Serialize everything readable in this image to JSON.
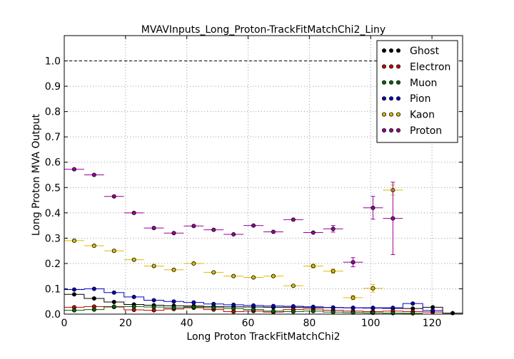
{
  "chart_data": {
    "type": "scatter",
    "title": "MVAVInputs_Long_Proton-TrackFitMatchChi2_Liny",
    "xlabel": "Long Proton TrackFitMatchChi2",
    "ylabel": "Long Proton MVA Output",
    "xlim": [
      0,
      130
    ],
    "ylim": [
      0,
      1.1
    ],
    "x_ticks": [
      0,
      20,
      40,
      60,
      80,
      100,
      120
    ],
    "y_ticks": [
      0.0,
      0.1,
      0.2,
      0.3,
      0.4,
      0.5,
      0.6,
      0.7,
      0.8,
      0.9,
      1.0
    ],
    "x_tick_labels": [
      "0",
      "20",
      "40",
      "60",
      "80",
      "100",
      "120"
    ],
    "y_tick_labels": [
      "0.0",
      "0.1",
      "0.2",
      "0.3",
      "0.4",
      "0.5",
      "0.6",
      "0.7",
      "0.8",
      "0.9",
      "1.0"
    ],
    "grid": true,
    "reference_line": 1.0,
    "legend_position": "top-right",
    "bin_half_width": 3.25,
    "series": [
      {
        "name": "Ghost",
        "color": "#000000",
        "style": "histogram",
        "x": [
          3.25,
          9.75,
          16.25,
          22.75,
          29.25,
          35.75,
          42.25,
          48.75,
          55.25,
          61.75,
          68.25,
          74.75,
          81.25,
          87.75,
          94.25,
          100.75,
          107.25,
          113.75,
          120.25,
          126.75
        ],
        "y": [
          0.078,
          0.062,
          0.048,
          0.038,
          0.035,
          0.033,
          0.032,
          0.03,
          0.029,
          0.028,
          0.027,
          0.027,
          0.026,
          0.026,
          0.025,
          0.024,
          0.023,
          0.022,
          0.027,
          0.004
        ]
      },
      {
        "name": "Electron",
        "color": "#cc0000",
        "style": "histogram",
        "x": [
          3.25,
          9.75,
          16.25,
          22.75,
          29.25,
          35.75,
          42.25,
          48.75,
          55.25,
          61.75,
          68.25,
          74.75,
          81.25,
          87.75,
          94.25,
          100.75,
          107.25,
          113.75,
          120.25
        ],
        "y": [
          0.027,
          0.03,
          0.028,
          0.017,
          0.015,
          0.02,
          0.025,
          0.018,
          0.01,
          0.012,
          0.008,
          0.018,
          0.02,
          0.015,
          0.012,
          0.01,
          0.012,
          0.01,
          0.008
        ]
      },
      {
        "name": "Muon",
        "color": "#006600",
        "style": "histogram",
        "x": [
          3.25,
          9.75,
          16.25,
          22.75,
          29.25,
          35.75,
          42.25,
          48.75,
          55.25,
          61.75,
          68.25,
          74.75,
          81.25,
          87.75,
          94.25,
          100.75,
          107.25,
          113.75
        ],
        "y": [
          0.015,
          0.018,
          0.03,
          0.03,
          0.028,
          0.025,
          0.028,
          0.025,
          0.022,
          0.018,
          0.012,
          0.01,
          0.012,
          0.008,
          0.006,
          0.005,
          0.004,
          0.003
        ]
      },
      {
        "name": "Pion",
        "color": "#0000cc",
        "style": "histogram",
        "x": [
          3.25,
          9.75,
          16.25,
          22.75,
          29.25,
          35.75,
          42.25,
          48.75,
          55.25,
          61.75,
          68.25,
          74.75,
          81.25,
          87.75,
          94.25,
          100.75,
          107.25,
          113.75,
          120.25
        ],
        "y": [
          0.097,
          0.1,
          0.085,
          0.068,
          0.055,
          0.05,
          0.046,
          0.04,
          0.037,
          0.034,
          0.032,
          0.031,
          0.029,
          0.026,
          0.025,
          0.025,
          0.025,
          0.042,
          0.014
        ]
      },
      {
        "name": "Kaon",
        "color": "#ddbb00",
        "style": "markers",
        "x": [
          3.25,
          9.75,
          16.25,
          22.75,
          29.25,
          35.75,
          42.25,
          48.75,
          55.25,
          61.75,
          68.25,
          74.75,
          81.25,
          87.75,
          94.25,
          100.75,
          107.25
        ],
        "y": [
          0.29,
          0.27,
          0.25,
          0.215,
          0.19,
          0.175,
          0.2,
          0.165,
          0.15,
          0.145,
          0.15,
          0.112,
          0.19,
          0.17,
          0.065,
          0.102,
          0.49
        ],
        "yerr": [
          0.004,
          0.004,
          0.004,
          0.004,
          0.004,
          0.004,
          0.004,
          0.004,
          0.004,
          0.004,
          0.005,
          0.006,
          0.007,
          0.008,
          0.008,
          0.015,
          0.02
        ]
      },
      {
        "name": "Proton",
        "color": "#990099",
        "style": "markers",
        "x": [
          3.25,
          9.75,
          16.25,
          22.75,
          29.25,
          35.75,
          42.25,
          48.75,
          55.25,
          61.75,
          68.25,
          74.75,
          81.25,
          87.75,
          94.25,
          100.75,
          107.25
        ],
        "y": [
          0.572,
          0.55,
          0.465,
          0.4,
          0.34,
          0.32,
          0.348,
          0.333,
          0.315,
          0.35,
          0.325,
          0.373,
          0.322,
          0.337,
          0.205,
          0.42,
          0.378
        ],
        "yerr": [
          0.004,
          0.004,
          0.004,
          0.004,
          0.004,
          0.004,
          0.004,
          0.005,
          0.005,
          0.005,
          0.006,
          0.006,
          0.006,
          0.013,
          0.018,
          0.045,
          0.143
        ]
      }
    ]
  }
}
